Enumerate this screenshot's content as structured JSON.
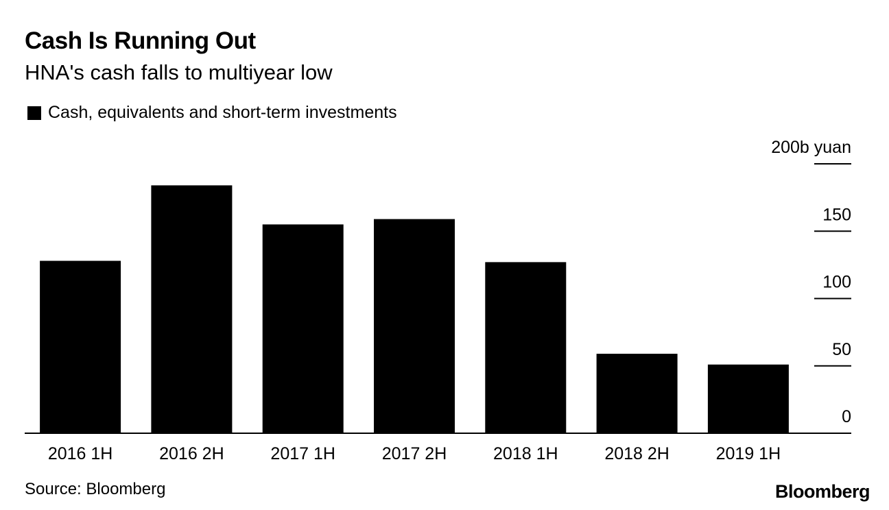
{
  "header": {
    "title": "Cash Is Running Out",
    "subtitle": "HNA's cash falls to multiyear low"
  },
  "legend": {
    "label": "Cash, equivalents and short-term investments"
  },
  "footer": {
    "source": "Source: Bloomberg",
    "brand": "Bloomberg"
  },
  "colors": {
    "bar": "#000000",
    "axis": "#000000"
  },
  "chart_data": {
    "type": "bar",
    "title": "Cash Is Running Out",
    "subtitle": "HNA's cash falls to multiyear low",
    "categories": [
      "2016 1H",
      "2016 2H",
      "2017 1H",
      "2017 2H",
      "2018 1H",
      "2018 2H",
      "2019 1H"
    ],
    "series": [
      {
        "name": "Cash, equivalents and short-term investments",
        "values": [
          128,
          184,
          155,
          159,
          127,
          59,
          51
        ]
      }
    ],
    "ylim": [
      0,
      200
    ],
    "yticks": [
      0,
      50,
      100,
      150,
      200
    ],
    "ytick_labels": [
      "0",
      "50",
      "100",
      "150",
      "200b yuan"
    ],
    "ylabel": "b yuan",
    "xlabel": "",
    "y_axis_side": "right",
    "grid": false,
    "legend_position": "top-left"
  }
}
